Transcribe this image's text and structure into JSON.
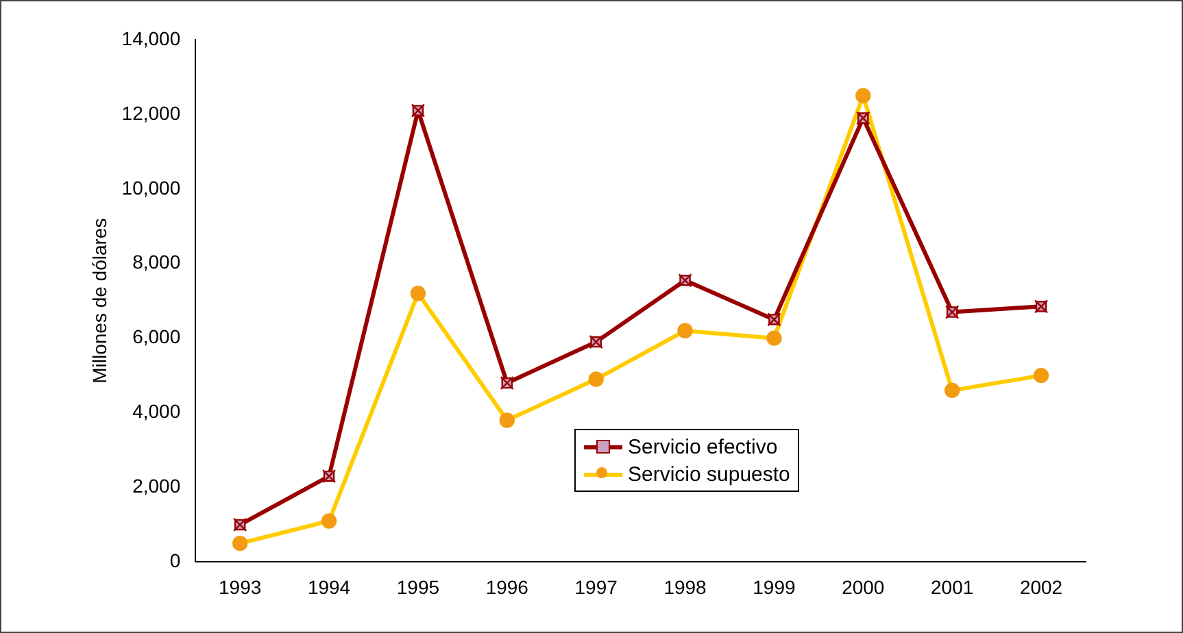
{
  "chart_data": {
    "type": "line",
    "ylabel": "Millones de dólares",
    "categories": [
      "1993",
      "1994",
      "1995",
      "1996",
      "1997",
      "1998",
      "1999",
      "2000",
      "2001",
      "2002"
    ],
    "series": [
      {
        "name": "Servicio efectivo",
        "color": "#990000",
        "marker": "square",
        "values": [
          1000,
          2300,
          12100,
          4800,
          5900,
          7550,
          6500,
          11900,
          6700,
          6850
        ]
      },
      {
        "name": "Servicio supuesto",
        "color": "#ffcc00",
        "marker": "circle",
        "values": [
          500,
          1100,
          7200,
          3800,
          4900,
          6200,
          6000,
          12500,
          4600,
          5000
        ]
      }
    ],
    "ylim": [
      0,
      14000
    ],
    "yticks": [
      {
        "value": 0,
        "label": "0"
      },
      {
        "value": 2000,
        "label": "2,000"
      },
      {
        "value": 4000,
        "label": "4,000"
      },
      {
        "value": 6000,
        "label": "6,000"
      },
      {
        "value": 8000,
        "label": "8,000"
      },
      {
        "value": 10000,
        "label": "10,000"
      },
      {
        "value": 12000,
        "label": "12,000"
      },
      {
        "value": 14000,
        "label": "14,000"
      }
    ],
    "grid": false,
    "legend": "center",
    "line_style": "solid"
  }
}
